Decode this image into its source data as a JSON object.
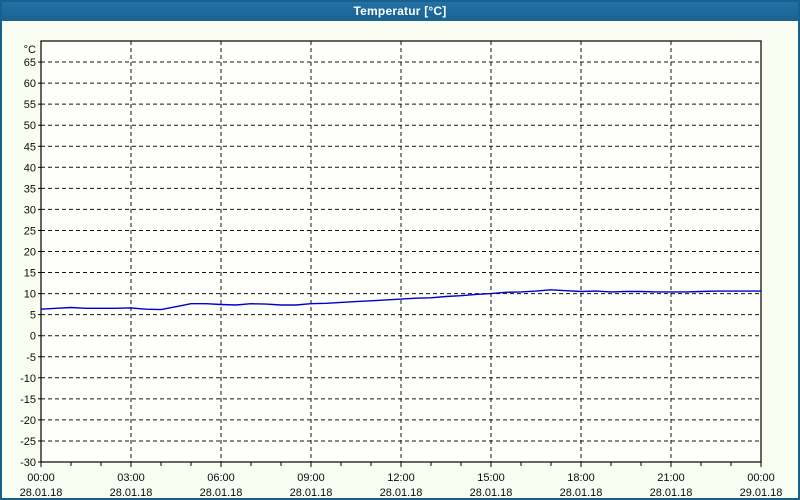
{
  "window": {
    "title": "Temperatur [°C]",
    "titlebar_color": "#1d689b",
    "border_color": "#17608f",
    "background_color": "#fafdf2",
    "plot_background_color": "#fefffb",
    "text_color": "#0b0b10"
  },
  "chart_data": {
    "type": "line",
    "title": "Temperatur [°C]",
    "ylabel": "°C",
    "xlabel": "",
    "ylim": [
      -30,
      70
    ],
    "ytick_step": 5,
    "ytick_labels": [
      65,
      60,
      55,
      50,
      45,
      40,
      35,
      30,
      25,
      20,
      15,
      10,
      5,
      0,
      -5,
      -10,
      -15,
      -20,
      -25,
      -30
    ],
    "xlim_hours": [
      0,
      24
    ],
    "minor_xtick_every_hours": 1,
    "grid": true,
    "grid_style": "dashed",
    "grid_color": "#141414",
    "xticks": [
      {
        "hour": 0,
        "time": "00:00",
        "date": "28.01.18"
      },
      {
        "hour": 3,
        "time": "03:00",
        "date": "28.01.18"
      },
      {
        "hour": 6,
        "time": "06:00",
        "date": "28.01.18"
      },
      {
        "hour": 9,
        "time": "09:00",
        "date": "28.01.18"
      },
      {
        "hour": 12,
        "time": "12:00",
        "date": "28.01.18"
      },
      {
        "hour": 15,
        "time": "15:00",
        "date": "28.01.18"
      },
      {
        "hour": 18,
        "time": "18:00",
        "date": "28.01.18"
      },
      {
        "hour": 21,
        "time": "21:00",
        "date": "28.01.18"
      },
      {
        "hour": 24,
        "time": "00:00",
        "date": "29.01.18"
      }
    ],
    "series": [
      {
        "name": "Temperatur",
        "color": "#0000cd",
        "x_hours": [
          0,
          0.5,
          1,
          1.5,
          2,
          2.5,
          3,
          3.5,
          4,
          4.5,
          5,
          5.5,
          6,
          6.5,
          7,
          7.5,
          8,
          8.5,
          9,
          9.5,
          10,
          10.5,
          11,
          11.5,
          12,
          12.5,
          13,
          13.5,
          14,
          14.5,
          15,
          15.5,
          16,
          16.5,
          17,
          17.5,
          18,
          18.5,
          19,
          19.5,
          20,
          20.5,
          21,
          21.5,
          22,
          22.5,
          23,
          23.5,
          24
        ],
        "values": [
          6.3,
          6.5,
          6.7,
          6.5,
          6.5,
          6.5,
          6.6,
          6.3,
          6.2,
          6.9,
          7.6,
          7.6,
          7.4,
          7.3,
          7.6,
          7.5,
          7.3,
          7.3,
          7.6,
          7.7,
          7.9,
          8.1,
          8.3,
          8.5,
          8.7,
          8.9,
          9.0,
          9.3,
          9.5,
          9.8,
          10.0,
          10.3,
          10.4,
          10.6,
          10.9,
          10.7,
          10.5,
          10.6,
          10.4,
          10.5,
          10.5,
          10.4,
          10.4,
          10.4,
          10.5,
          10.6,
          10.6,
          10.6,
          10.6
        ]
      }
    ]
  }
}
